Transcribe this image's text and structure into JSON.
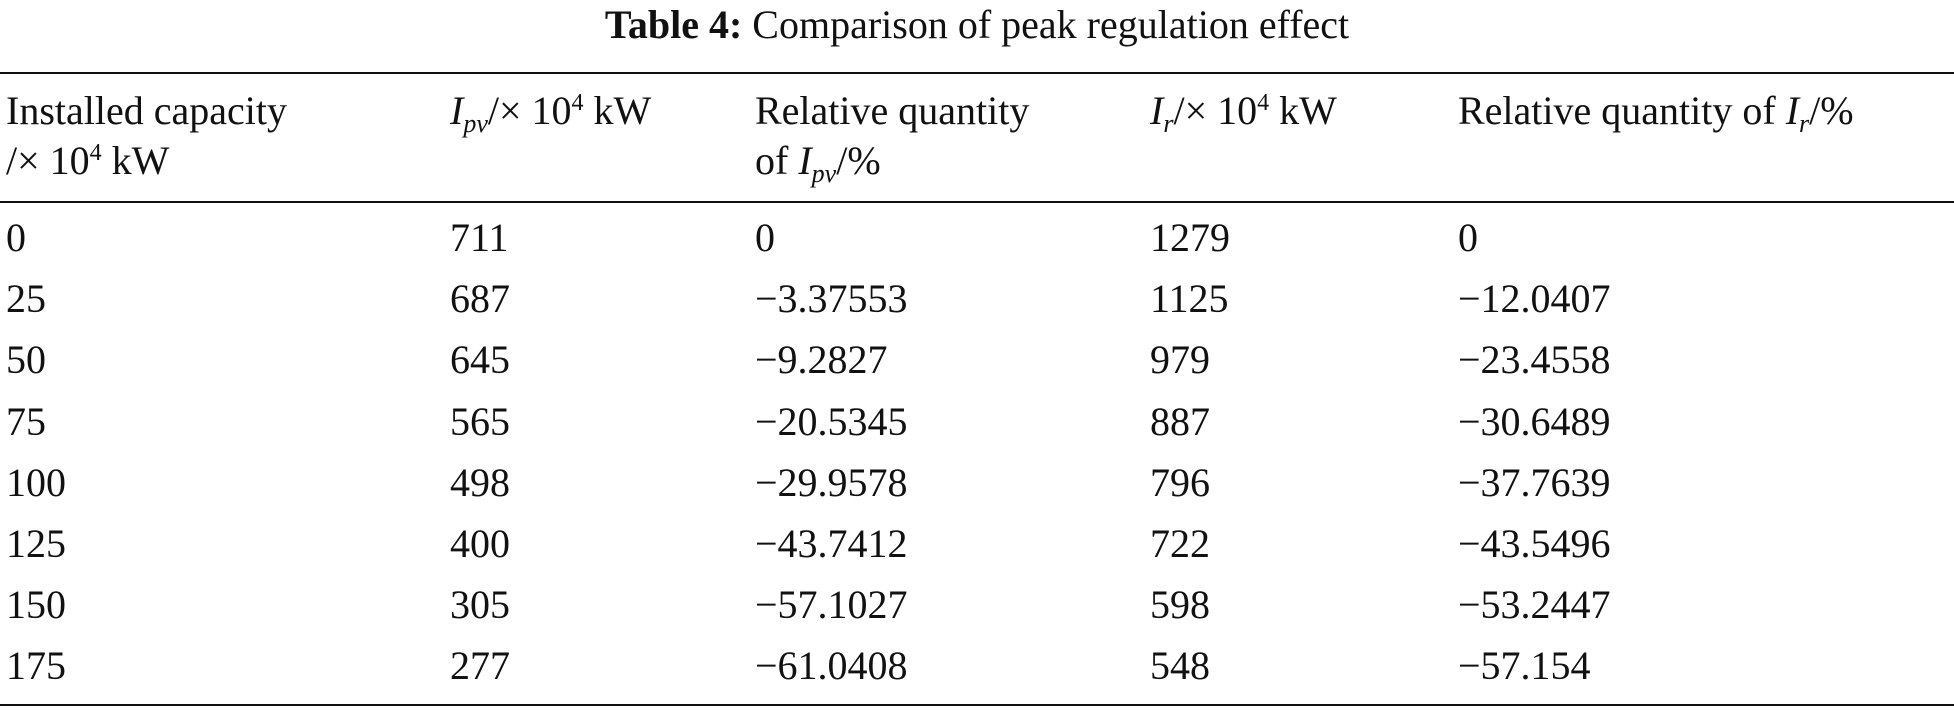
{
  "caption": {
    "label": "Table 4:",
    "title": "Comparison of peak regulation effect"
  },
  "headers": {
    "installed": {
      "line1": "Installed capacity",
      "line2_prefix": "/× 10",
      "line2_exp": "4",
      "line2_unit": " kW"
    },
    "ipv": {
      "var": "I",
      "sub": "pv",
      "prefix": "/× 10",
      "exp": "4",
      "unit": " kW"
    },
    "rel_ipv": {
      "line1": "Relative quantity",
      "line2_pre": "of ",
      "var": "I",
      "sub": "pv",
      "suffix": "/%"
    },
    "ir": {
      "var": "I",
      "sub": "r",
      "prefix": "/× 10",
      "exp": "4",
      "unit": " kW"
    },
    "rel_ir": {
      "text": "Relative quantity of ",
      "var": "I",
      "sub": "r",
      "suffix": "/%"
    }
  },
  "rows": [
    {
      "installed": "0",
      "ipv": "711",
      "rel_ipv": "0",
      "ir": "1279",
      "rel_ir": "0"
    },
    {
      "installed": "25",
      "ipv": "687",
      "rel_ipv": "−3.37553",
      "ir": "1125",
      "rel_ir": "−12.0407"
    },
    {
      "installed": "50",
      "ipv": "645",
      "rel_ipv": "−9.2827",
      "ir": "979",
      "rel_ir": "−23.4558"
    },
    {
      "installed": "75",
      "ipv": "565",
      "rel_ipv": "−20.5345",
      "ir": "887",
      "rel_ir": "−30.6489"
    },
    {
      "installed": "100",
      "ipv": "498",
      "rel_ipv": "−29.9578",
      "ir": "796",
      "rel_ir": "−37.7639"
    },
    {
      "installed": "125",
      "ipv": "400",
      "rel_ipv": "−43.7412",
      "ir": "722",
      "rel_ir": "−43.5496"
    },
    {
      "installed": "150",
      "ipv": "305",
      "rel_ipv": "−57.1027",
      "ir": "598",
      "rel_ir": "−53.2447"
    },
    {
      "installed": "175",
      "ipv": "277",
      "rel_ipv": "−61.0408",
      "ir": "548",
      "rel_ir": "−57.154"
    }
  ]
}
